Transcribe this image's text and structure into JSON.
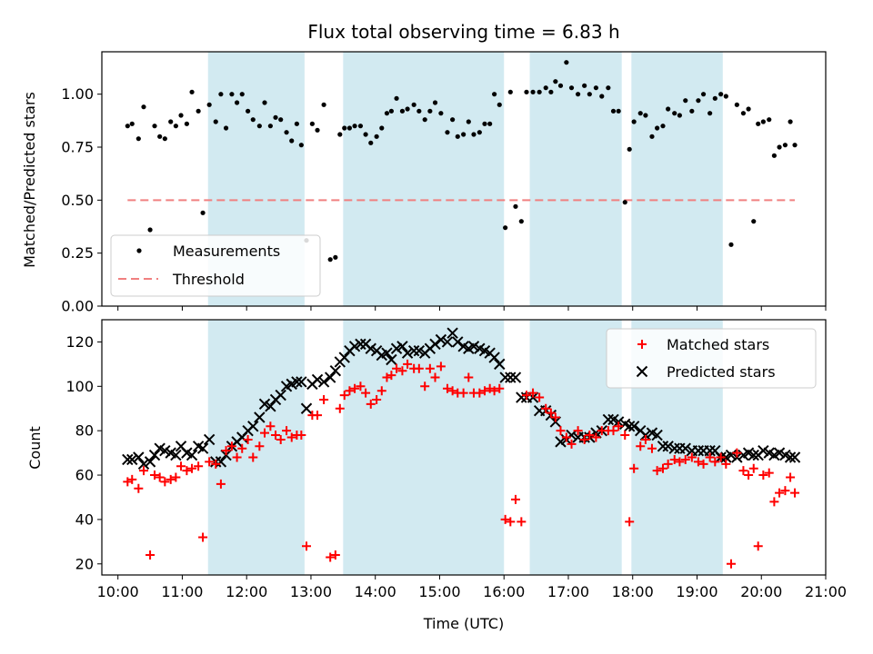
{
  "chart_data": [
    {
      "type": "scatter",
      "title": "Flux total observing time = 6.83 h",
      "ylabel": "Matched/Predicted stars",
      "xlabel": "",
      "ylim": [
        0,
        1.2
      ],
      "yticks": [
        "0.00",
        "0.25",
        "0.50",
        "0.75",
        "1.00"
      ],
      "ytick_values": [
        0,
        0.25,
        0.5,
        0.75,
        1.0
      ],
      "xlim": [
        9.75,
        21.0
      ],
      "legend": {
        "placement": "lower-left",
        "entries": [
          "Measurements",
          "Threshold"
        ]
      },
      "series": [
        {
          "name": "Measurements",
          "color": "#000000",
          "x": [
            10.15,
            10.22,
            10.32,
            10.4,
            10.5,
            10.57,
            10.65,
            10.73,
            10.82,
            10.9,
            10.98,
            11.07,
            11.15,
            11.25,
            11.32,
            11.42,
            11.52,
            11.6,
            11.68,
            11.77,
            11.85,
            11.93,
            12.02,
            12.1,
            12.2,
            12.28,
            12.37,
            12.45,
            12.53,
            12.62,
            12.7,
            12.78,
            12.85,
            12.93,
            13.02,
            13.1,
            13.2,
            13.3,
            13.38,
            13.45,
            13.52,
            13.6,
            13.68,
            13.77,
            13.85,
            13.93,
            14.02,
            14.1,
            14.18,
            14.25,
            14.33,
            14.42,
            14.5,
            14.6,
            14.68,
            14.77,
            14.85,
            14.93,
            15.02,
            15.12,
            15.2,
            15.28,
            15.37,
            15.45,
            15.53,
            15.62,
            15.7,
            15.78,
            15.85,
            15.93,
            16.02,
            16.1,
            16.18,
            16.27,
            16.35,
            16.45,
            16.55,
            16.65,
            16.73,
            16.8,
            16.88,
            16.97,
            17.05,
            17.15,
            17.25,
            17.33,
            17.43,
            17.52,
            17.62,
            17.7,
            17.78,
            17.88,
            17.95,
            18.02,
            18.12,
            18.2,
            18.3,
            18.38,
            18.47,
            18.55,
            18.65,
            18.73,
            18.82,
            18.92,
            19.02,
            19.1,
            19.2,
            19.28,
            19.37,
            19.45,
            19.53,
            19.62,
            19.72,
            19.8,
            19.88,
            19.95,
            20.03,
            20.12,
            20.2,
            20.28,
            20.37,
            20.45,
            20.52
          ],
          "values": [
            0.85,
            0.86,
            0.79,
            0.94,
            0.36,
            0.85,
            0.8,
            0.79,
            0.87,
            0.85,
            0.9,
            0.86,
            1.01,
            0.92,
            0.44,
            0.95,
            0.87,
            1.0,
            0.84,
            1.0,
            0.96,
            1.0,
            0.92,
            0.88,
            0.85,
            0.96,
            0.85,
            0.89,
            0.88,
            0.82,
            0.78,
            0.86,
            0.76,
            0.31,
            0.86,
            0.83,
            0.95,
            0.22,
            0.23,
            0.81,
            0.84,
            0.84,
            0.85,
            0.85,
            0.81,
            0.77,
            0.8,
            0.84,
            0.91,
            0.92,
            0.98,
            0.92,
            0.93,
            0.95,
            0.92,
            0.88,
            0.92,
            0.96,
            0.91,
            0.82,
            0.88,
            0.8,
            0.81,
            0.87,
            0.81,
            0.82,
            0.86,
            0.86,
            1.0,
            0.95,
            0.37,
            1.01,
            0.47,
            0.4,
            1.01,
            1.01,
            1.01,
            1.03,
            1.01,
            1.06,
            1.04,
            1.15,
            1.03,
            1.0,
            1.04,
            1.0,
            1.03,
            0.99,
            1.03,
            0.92,
            0.92,
            0.49,
            0.74,
            0.87,
            0.91,
            0.9,
            0.8,
            0.84,
            0.85,
            0.93,
            0.91,
            0.9,
            0.97,
            0.92,
            0.97,
            1.0,
            0.91,
            0.98,
            1.0,
            0.99,
            0.29,
            0.95,
            0.91,
            0.93,
            0.4,
            0.86,
            0.87,
            0.88,
            0.71,
            0.75,
            0.76,
            0.87,
            0.76
          ]
        },
        {
          "name": "Threshold",
          "color": "#f08080",
          "x": [
            10.15,
            20.52
          ],
          "values": [
            0.5,
            0.5
          ]
        }
      ]
    },
    {
      "type": "scatter",
      "title": "",
      "xlabel": "Time (UTC)",
      "ylabel": "Count",
      "ylim": [
        15,
        130
      ],
      "yticks": [
        "20",
        "40",
        "60",
        "80",
        "100",
        "120"
      ],
      "ytick_values": [
        20,
        40,
        60,
        80,
        100,
        120
      ],
      "xlim": [
        9.75,
        21.0
      ],
      "xticks": [
        "10:00",
        "11:00",
        "12:00",
        "13:00",
        "14:00",
        "15:00",
        "16:00",
        "17:00",
        "18:00",
        "19:00",
        "20:00",
        "21:00"
      ],
      "xtick_values": [
        10,
        11,
        12,
        13,
        14,
        15,
        16,
        17,
        18,
        19,
        20,
        21
      ],
      "legend": {
        "placement": "top-right",
        "entries": [
          "Matched stars",
          "Predicted stars"
        ]
      },
      "series": [
        {
          "name": "Matched stars",
          "color": "#ff0000",
          "x": [
            10.15,
            10.22,
            10.32,
            10.4,
            10.5,
            10.57,
            10.65,
            10.73,
            10.82,
            10.9,
            10.98,
            11.07,
            11.15,
            11.25,
            11.32,
            11.42,
            11.52,
            11.6,
            11.68,
            11.77,
            11.85,
            11.93,
            12.02,
            12.1,
            12.2,
            12.28,
            12.37,
            12.45,
            12.53,
            12.62,
            12.7,
            12.78,
            12.85,
            12.93,
            13.02,
            13.1,
            13.2,
            13.3,
            13.38,
            13.45,
            13.52,
            13.6,
            13.68,
            13.77,
            13.85,
            13.93,
            14.02,
            14.1,
            14.18,
            14.25,
            14.33,
            14.42,
            14.5,
            14.6,
            14.68,
            14.77,
            14.85,
            14.93,
            15.02,
            15.12,
            15.2,
            15.28,
            15.37,
            15.45,
            15.53,
            15.62,
            15.7,
            15.78,
            15.85,
            15.93,
            16.02,
            16.1,
            16.18,
            16.27,
            16.35,
            16.45,
            16.55,
            16.65,
            16.73,
            16.8,
            16.88,
            16.97,
            17.05,
            17.15,
            17.25,
            17.33,
            17.43,
            17.52,
            17.62,
            17.7,
            17.78,
            17.88,
            17.95,
            18.02,
            18.12,
            18.2,
            18.3,
            18.38,
            18.47,
            18.55,
            18.65,
            18.73,
            18.82,
            18.92,
            19.02,
            19.1,
            19.2,
            19.28,
            19.37,
            19.45,
            19.53,
            19.62,
            19.72,
            19.8,
            19.88,
            19.95,
            20.03,
            20.12,
            20.2,
            20.28,
            20.37,
            20.45,
            20.52
          ],
          "values": [
            57,
            58,
            54,
            62,
            24,
            60,
            59,
            57,
            58,
            59,
            64,
            62,
            63,
            64,
            32,
            66,
            65,
            56,
            71,
            73,
            68,
            72,
            76,
            68,
            73,
            79,
            82,
            78,
            76,
            80,
            77,
            78,
            78,
            28,
            87,
            87,
            94,
            23,
            24,
            90,
            96,
            98,
            99,
            100,
            97,
            92,
            94,
            98,
            104,
            105,
            108,
            107,
            110,
            108,
            108,
            100,
            108,
            104,
            109,
            99,
            98,
            97,
            97,
            104,
            97,
            97,
            98,
            99,
            98,
            99,
            40,
            39,
            49,
            39,
            96,
            97,
            95,
            90,
            88,
            86,
            80,
            77,
            74,
            80,
            76,
            78,
            77,
            80,
            80,
            80,
            82,
            78,
            39,
            63,
            73,
            76,
            72,
            62,
            63,
            65,
            67,
            66,
            67,
            68,
            66,
            65,
            68,
            66,
            68,
            65,
            20,
            70,
            62,
            60,
            63,
            28,
            60,
            61,
            48,
            52,
            53,
            59,
            52
          ]
        },
        {
          "name": "Predicted stars",
          "color": "#000000",
          "x": [
            10.15,
            10.22,
            10.32,
            10.4,
            10.5,
            10.57,
            10.65,
            10.73,
            10.82,
            10.9,
            10.98,
            11.07,
            11.15,
            11.25,
            11.32,
            11.42,
            11.52,
            11.6,
            11.68,
            11.77,
            11.85,
            11.93,
            12.02,
            12.1,
            12.2,
            12.28,
            12.37,
            12.45,
            12.53,
            12.62,
            12.7,
            12.78,
            12.85,
            12.93,
            13.02,
            13.1,
            13.2,
            13.3,
            13.38,
            13.45,
            13.52,
            13.6,
            13.68,
            13.77,
            13.85,
            13.93,
            14.02,
            14.1,
            14.18,
            14.25,
            14.33,
            14.42,
            14.5,
            14.6,
            14.68,
            14.77,
            14.85,
            14.93,
            15.02,
            15.12,
            15.2,
            15.28,
            15.37,
            15.45,
            15.53,
            15.62,
            15.7,
            15.78,
            15.85,
            15.93,
            16.02,
            16.1,
            16.18,
            16.27,
            16.35,
            16.45,
            16.55,
            16.65,
            16.73,
            16.8,
            16.88,
            16.97,
            17.05,
            17.15,
            17.25,
            17.33,
            17.43,
            17.52,
            17.62,
            17.7,
            17.78,
            17.88,
            17.95,
            18.02,
            18.12,
            18.2,
            18.3,
            18.38,
            18.47,
            18.55,
            18.65,
            18.73,
            18.82,
            18.92,
            19.02,
            19.1,
            19.2,
            19.28,
            19.37,
            19.45,
            19.53,
            19.62,
            19.72,
            19.8,
            19.88,
            19.95,
            20.03,
            20.12,
            20.2,
            20.28,
            20.37,
            20.45,
            20.52
          ],
          "values": [
            67,
            67,
            68,
            65,
            66,
            69,
            72,
            71,
            70,
            69,
            73,
            70,
            69,
            73,
            72,
            76,
            66,
            66,
            69,
            73,
            75,
            77,
            80,
            82,
            86,
            92,
            91,
            94,
            96,
            100,
            101,
            102,
            102,
            90,
            101,
            103,
            102,
            104,
            107,
            111,
            113,
            116,
            118,
            119,
            119,
            117,
            116,
            114,
            115,
            112,
            117,
            118,
            115,
            116,
            116,
            115,
            117,
            119,
            121,
            120,
            124,
            120,
            118,
            117,
            118,
            117,
            116,
            115,
            113,
            110,
            104,
            104,
            104,
            95,
            95,
            95,
            89,
            89,
            87,
            84,
            75,
            76,
            78,
            77,
            77,
            77,
            79,
            80,
            85,
            85,
            84,
            83,
            82,
            82,
            80,
            78,
            79,
            78,
            73,
            73,
            72,
            72,
            72,
            71,
            71,
            71,
            71,
            71,
            68,
            68,
            69,
            68,
            69,
            70,
            69,
            69,
            71,
            70,
            69,
            70,
            69,
            68,
            68
          ]
        }
      ],
      "shaded_intervals": [
        [
          11.4,
          12.9
        ],
        [
          13.5,
          16.0
        ],
        [
          16.4,
          17.83
        ],
        [
          17.98,
          19.4
        ]
      ],
      "shade_color": "#add8e6"
    }
  ]
}
